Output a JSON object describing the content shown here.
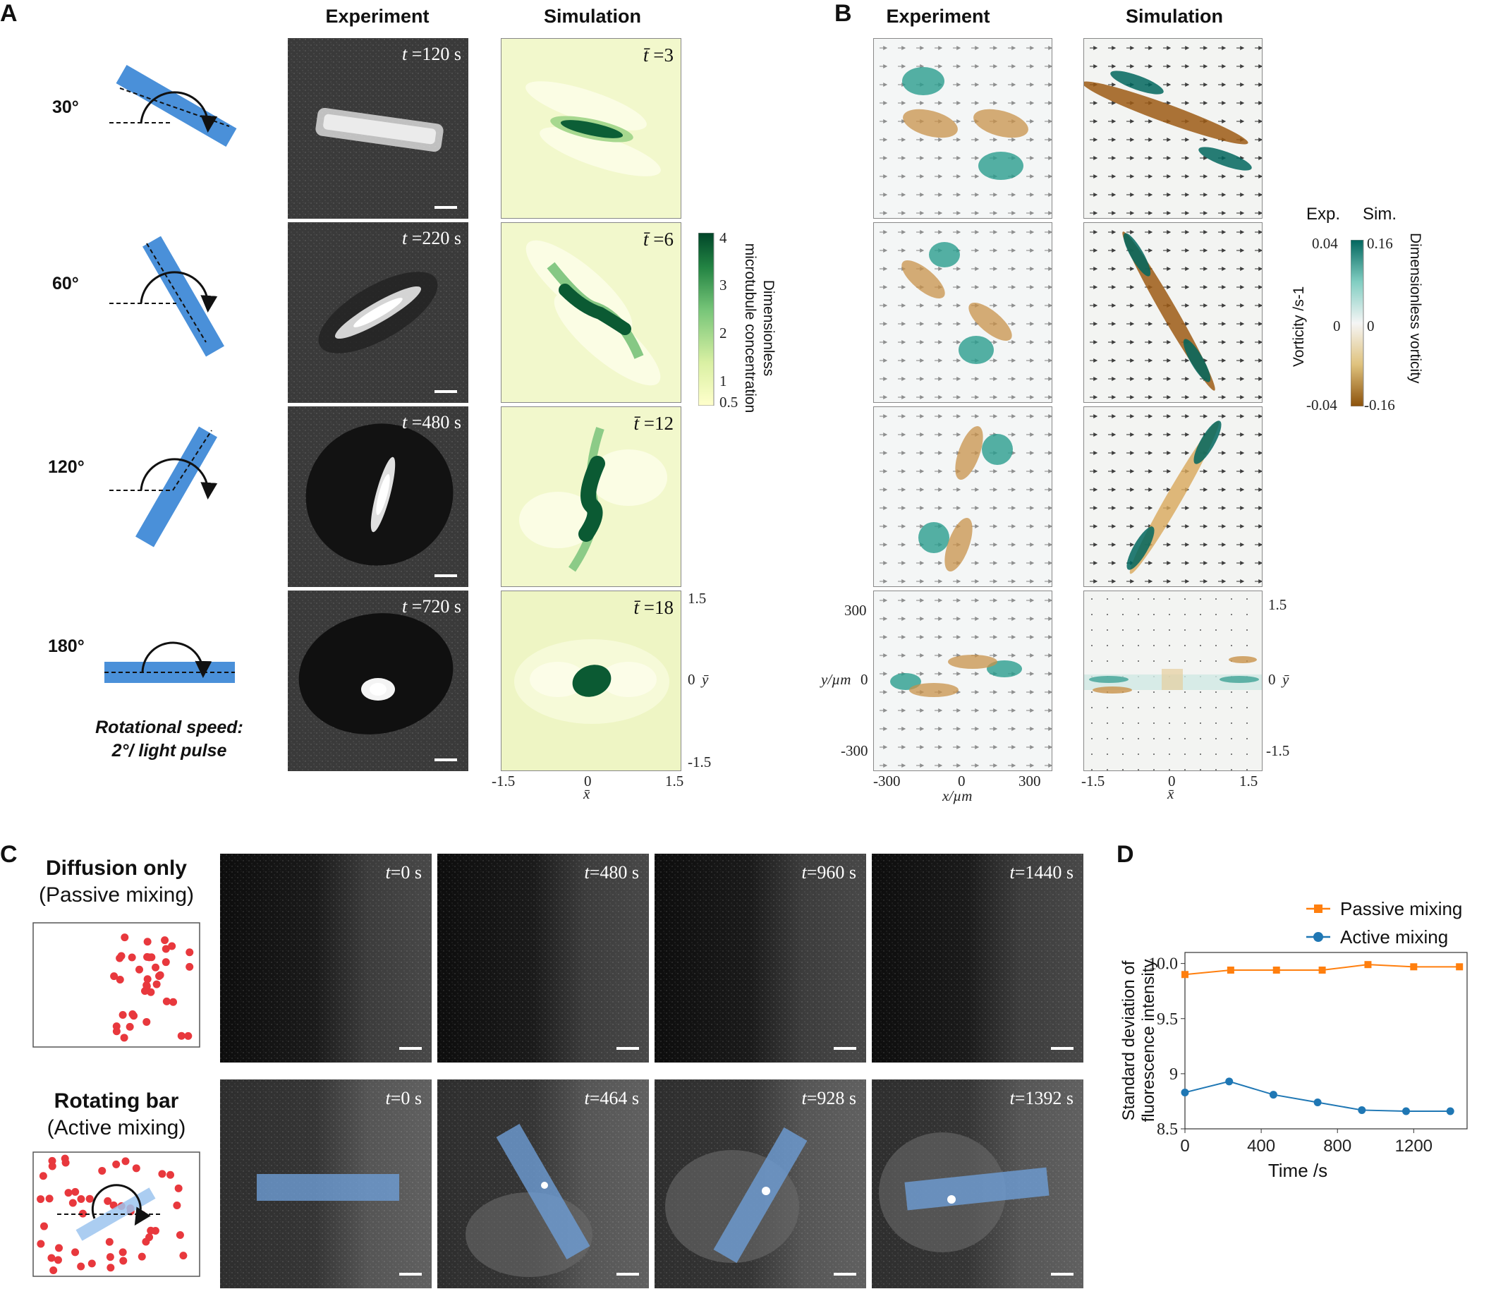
{
  "panels": {
    "A": "A",
    "B": "B",
    "C": "C",
    "D": "D"
  },
  "panelA": {
    "col_experiment": "Experiment",
    "col_simulation": "Simulation",
    "angles": [
      "30°",
      "60°",
      "120°",
      "180°"
    ],
    "rotation_note_line1": "Rotational speed:",
    "rotation_note_line2": "2°/ light pulse",
    "exp_times": [
      "120 s",
      "220 s",
      "480 s",
      "720 s"
    ],
    "sim_times": [
      "3",
      "6",
      "12",
      "18"
    ],
    "colorbar": {
      "title_line1": "Dimensionless",
      "title_line2": "microtubule concentration",
      "ticks": [
        "4",
        "3",
        "2",
        "1",
        "0.5"
      ],
      "colors": [
        "#ffffcc",
        "#d9f0a3",
        "#78c679",
        "#238443",
        "#004529"
      ]
    },
    "x_ticks": [
      "-1.5",
      "0",
      "1.5"
    ],
    "y_ticks": [
      "1.5",
      "0",
      "-1.5"
    ]
  },
  "panelB": {
    "col_experiment": "Experiment",
    "col_simulation": "Simulation",
    "colorbar": {
      "exp_label": "Exp.",
      "sim_label": "Sim.",
      "exp_ticks": [
        "0.04",
        "0",
        "-0.04"
      ],
      "sim_ticks": [
        "0.16",
        "0",
        "-0.16"
      ],
      "left_title": "Vorticity /s-1",
      "right_title": "Dimensionless vorticity",
      "pos_color": "#01665e",
      "neg_color": "#8c510a"
    },
    "exp_x_ticks": [
      "-300",
      "0",
      "300"
    ],
    "exp_y_ticks": [
      "300",
      "0",
      "-300"
    ],
    "exp_y_label": "y/µm",
    "exp_x_label": "x/µm",
    "sim_x_ticks": [
      "-1.5",
      "0",
      "1.5"
    ],
    "sim_y_ticks": [
      "1.5",
      "0",
      "-1.5"
    ]
  },
  "panelC": {
    "row1_title": "Diffusion only",
    "row1_sub": "(Passive mixing)",
    "row2_title": "Rotating bar",
    "row2_sub": "(Active mixing)",
    "row1_times": [
      "0 s",
      "480 s",
      "960 s",
      "1440 s"
    ],
    "row2_times": [
      "0 s",
      "464 s",
      "928 s",
      "1392 s"
    ],
    "dot_color": "#e8383d",
    "bar_color": "#4a90d9"
  },
  "chart_data": {
    "type": "line",
    "xlabel": "Time /s",
    "ylabel_line1": "Standard deviation of",
    "ylabel_line2": "fluorescence intensity",
    "xlim": [
      0,
      1480
    ],
    "ylim": [
      8.5,
      10.1
    ],
    "x_ticks": [
      0,
      400,
      800,
      1200
    ],
    "y_ticks": [
      8.5,
      9,
      9.5,
      10
    ],
    "y_tick_labels": [
      "8.5",
      "9",
      "9.5",
      "10.0"
    ],
    "legend_position": "top-right",
    "series": [
      {
        "name": "Passive mixing",
        "color": "#ff7f0e",
        "marker": "square",
        "x": [
          0,
          240,
          480,
          720,
          960,
          1200,
          1440
        ],
        "y": [
          9.9,
          9.94,
          9.94,
          9.94,
          9.99,
          9.97,
          9.97
        ]
      },
      {
        "name": "Active mixing",
        "color": "#1f77b4",
        "marker": "circle",
        "x": [
          0,
          232,
          464,
          696,
          928,
          1160,
          1392
        ],
        "y": [
          8.83,
          8.93,
          8.81,
          8.74,
          8.67,
          8.66,
          8.66
        ]
      }
    ]
  }
}
